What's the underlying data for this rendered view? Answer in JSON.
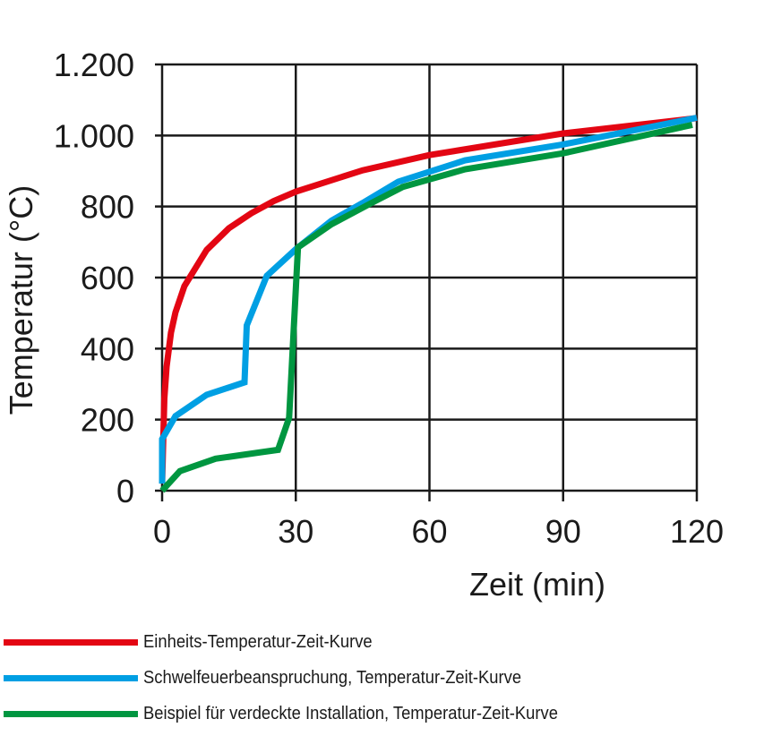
{
  "chart_data": {
    "type": "line",
    "title": "",
    "xlabel": "Zeit (min)",
    "ylabel": "Temperatur (°C)",
    "xlim": [
      0,
      120
    ],
    "ylim": [
      0,
      1200
    ],
    "xticks": [
      0,
      30,
      60,
      90,
      120
    ],
    "xtick_labels": [
      "0",
      "30",
      "60",
      "90",
      "120"
    ],
    "yticks": [
      0,
      200,
      400,
      600,
      800,
      1000,
      1200
    ],
    "ytick_labels": [
      "0",
      "200",
      "400",
      "600",
      "800",
      "1.000",
      "1.200"
    ],
    "grid": true,
    "legend_position": "bottom",
    "series": [
      {
        "name": "Einheits-Temperatur-Zeit-Kurve",
        "color": "#e30613",
        "x": [
          0,
          0.5,
          1,
          2,
          3,
          5,
          10,
          15,
          20,
          25,
          30,
          45,
          60,
          90,
          120
        ],
        "y": [
          20,
          260,
          349,
          445,
          502,
          576,
          678,
          739,
          781,
          815,
          842,
          902,
          945,
          1006,
          1049
        ]
      },
      {
        "name": "Schwelfeuerbeanspruchung, Temperatur-Zeit-Kurve",
        "color": "#009fe3",
        "x": [
          0,
          0,
          3,
          10,
          18.5,
          19,
          23.5,
          30,
          38,
          45,
          53,
          68,
          90,
          120
        ],
        "y": [
          20,
          145,
          210,
          270,
          305,
          465,
          605,
          680,
          760,
          810,
          870,
          930,
          975,
          1050
        ]
      },
      {
        "name": "Beispiel für verdeckte Installation, Temperatur-Zeit-Kurve",
        "color": "#009640",
        "x": [
          0,
          4,
          12,
          26,
          28.5,
          30.5,
          38,
          47,
          54,
          68,
          90,
          119
        ],
        "y": [
          0,
          55,
          90,
          115,
          205,
          685,
          750,
          810,
          855,
          905,
          950,
          1030
        ]
      }
    ]
  },
  "legend": {
    "items": [
      {
        "label": "Einheits-Temperatur-Zeit-Kurve",
        "color": "#e30613"
      },
      {
        "label": "Schwelfeuerbeanspruchung, Temperatur-Zeit-Kurve",
        "color": "#009fe3"
      },
      {
        "label": "Beispiel für verdeckte Installation, Temperatur-Zeit-Kurve",
        "color": "#009640"
      }
    ]
  }
}
